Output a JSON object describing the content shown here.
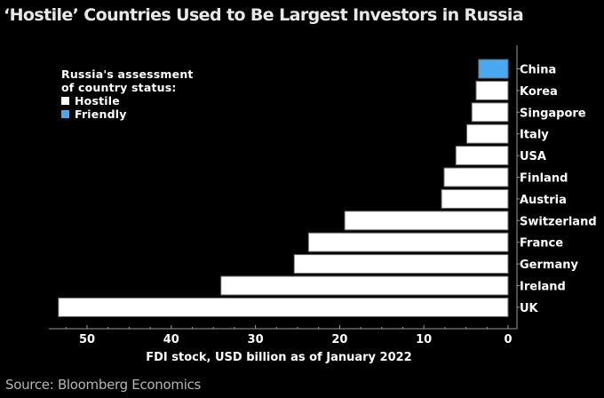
{
  "chart_data": {
    "type": "bar",
    "orientation": "horizontal",
    "title": "‘Hostile’ Countries Used to Be Largest Investors in Russia",
    "xlabel": "FDI stock, USD billion as of January 2022",
    "ylabel": "",
    "xlim": [
      0,
      55
    ],
    "x_direction": "reversed",
    "xticks": [
      50,
      40,
      30,
      20,
      10,
      0
    ],
    "grid": false,
    "legend": {
      "placement": "top-left",
      "title_lines": [
        "Russia's assessment",
        "of country status:"
      ],
      "entries": [
        {
          "label": "Hostile",
          "color": "#ffffff"
        },
        {
          "label": "Friendly",
          "color": "#4aa8f0"
        }
      ]
    },
    "categories": [
      "China",
      "Korea",
      "Singapore",
      "Italy",
      "USA",
      "Finland",
      "Austria",
      "Switzerland",
      "France",
      "Germany",
      "Ireland",
      "UK"
    ],
    "values": [
      3.5,
      3.8,
      4.3,
      4.9,
      6.2,
      7.6,
      7.9,
      19.4,
      23.7,
      25.4,
      34.1,
      53.4
    ],
    "status": [
      "Friendly",
      "Hostile",
      "Hostile",
      "Hostile",
      "Hostile",
      "Hostile",
      "Hostile",
      "Hostile",
      "Hostile",
      "Hostile",
      "Hostile",
      "Hostile"
    ],
    "source": "Source: Bloomberg Economics"
  }
}
